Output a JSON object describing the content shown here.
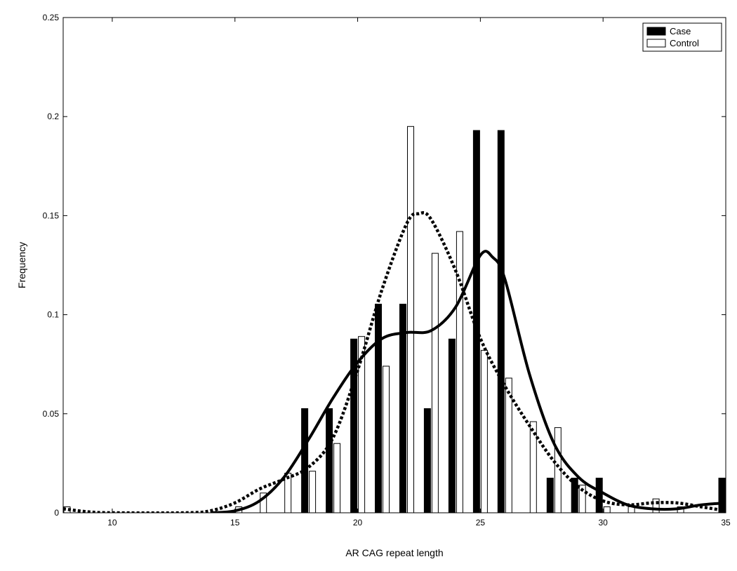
{
  "chart_data": {
    "type": "bar",
    "xlabel": "AR CAG repeat length",
    "ylabel": "Frequency",
    "xlim": [
      8,
      35
    ],
    "ylim": [
      0,
      0.25
    ],
    "xticks": [
      10,
      15,
      20,
      25,
      30,
      35
    ],
    "yticks": [
      0,
      0.05,
      0.1,
      0.15,
      0.2,
      0.25
    ],
    "ytick_labels": [
      "0",
      "0.05",
      "0.1",
      "0.15",
      "0.2",
      "0.25"
    ],
    "grid": false,
    "legend_position": "top-right",
    "series": [
      {
        "name": "Case",
        "style": "filled-bar",
        "color": "#000000",
        "points": [
          {
            "x": 18,
            "y": 0.0526
          },
          {
            "x": 19,
            "y": 0.0526
          },
          {
            "x": 20,
            "y": 0.0877
          },
          {
            "x": 21,
            "y": 0.1053
          },
          {
            "x": 22,
            "y": 0.1053
          },
          {
            "x": 23,
            "y": 0.0526
          },
          {
            "x": 24,
            "y": 0.0877
          },
          {
            "x": 25,
            "y": 0.193
          },
          {
            "x": 26,
            "y": 0.193
          },
          {
            "x": 28,
            "y": 0.0175
          },
          {
            "x": 29,
            "y": 0.0175
          },
          {
            "x": 30,
            "y": 0.0175
          },
          {
            "x": 35,
            "y": 0.0175
          }
        ]
      },
      {
        "name": "Control",
        "style": "open-bar",
        "color": "#ffffff",
        "points": [
          {
            "x": 8,
            "y": 0.003
          },
          {
            "x": 15,
            "y": 0.003
          },
          {
            "x": 16,
            "y": 0.01
          },
          {
            "x": 17,
            "y": 0.02
          },
          {
            "x": 18,
            "y": 0.021
          },
          {
            "x": 19,
            "y": 0.035
          },
          {
            "x": 20,
            "y": 0.089
          },
          {
            "x": 21,
            "y": 0.074
          },
          {
            "x": 22,
            "y": 0.195
          },
          {
            "x": 23,
            "y": 0.131
          },
          {
            "x": 24,
            "y": 0.142
          },
          {
            "x": 25,
            "y": 0.082
          },
          {
            "x": 26,
            "y": 0.068
          },
          {
            "x": 27,
            "y": 0.046
          },
          {
            "x": 28,
            "y": 0.043
          },
          {
            "x": 29,
            "y": 0.014
          },
          {
            "x": 30,
            "y": 0.003
          },
          {
            "x": 31,
            "y": 0.003
          },
          {
            "x": 32,
            "y": 0.007
          },
          {
            "x": 33,
            "y": 0.003
          }
        ]
      }
    ],
    "density_curves": [
      {
        "for": "Case",
        "style": "solid",
        "points": [
          [
            14,
            0.0
          ],
          [
            15,
            0.001
          ],
          [
            16,
            0.006
          ],
          [
            17,
            0.018
          ],
          [
            18,
            0.037
          ],
          [
            19,
            0.058
          ],
          [
            20,
            0.076
          ],
          [
            21,
            0.088
          ],
          [
            22,
            0.091
          ],
          [
            23,
            0.092
          ],
          [
            24,
            0.104
          ],
          [
            25,
            0.13
          ],
          [
            25.5,
            0.129
          ],
          [
            26,
            0.118
          ],
          [
            27,
            0.07
          ],
          [
            28,
            0.035
          ],
          [
            29,
            0.018
          ],
          [
            30,
            0.01
          ],
          [
            31,
            0.004
          ],
          [
            32,
            0.002
          ],
          [
            33,
            0.002
          ],
          [
            34,
            0.004
          ],
          [
            35,
            0.005
          ]
        ]
      },
      {
        "for": "Control",
        "style": "dotted",
        "points": [
          [
            8,
            0.002
          ],
          [
            9,
            0.0005
          ],
          [
            10,
            0.0
          ],
          [
            13,
            0.0
          ],
          [
            14,
            0.001
          ],
          [
            15,
            0.005
          ],
          [
            16,
            0.012
          ],
          [
            17,
            0.017
          ],
          [
            18,
            0.023
          ],
          [
            19,
            0.038
          ],
          [
            20,
            0.072
          ],
          [
            21,
            0.113
          ],
          [
            22,
            0.146
          ],
          [
            22.5,
            0.151
          ],
          [
            23,
            0.148
          ],
          [
            24,
            0.122
          ],
          [
            25,
            0.088
          ],
          [
            26,
            0.064
          ],
          [
            27,
            0.044
          ],
          [
            28,
            0.026
          ],
          [
            29,
            0.013
          ],
          [
            30,
            0.006
          ],
          [
            31,
            0.004
          ],
          [
            32,
            0.005
          ],
          [
            33,
            0.005
          ],
          [
            34,
            0.003
          ],
          [
            35,
            0.001
          ]
        ]
      }
    ]
  }
}
